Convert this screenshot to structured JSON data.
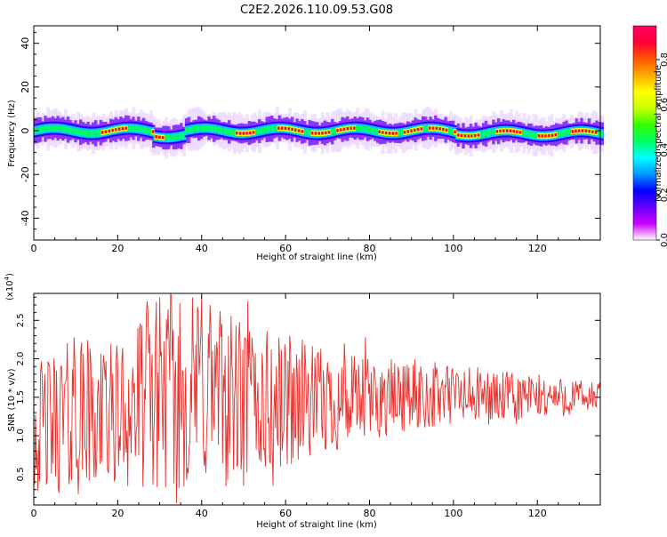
{
  "title": "C2E2.2026.110.09.53.G08",
  "chart_data": [
    {
      "type": "heatmap",
      "title": "C2E2.2026.110.09.53.G08",
      "xlabel": "Height of straight line (km)",
      "ylabel": "Frequency (Hz)",
      "xlim": [
        0,
        135
      ],
      "ylim": [
        -50,
        48
      ],
      "xticks": [
        0,
        20,
        40,
        60,
        80,
        100,
        120
      ],
      "yticks": [
        40,
        20,
        0,
        -20,
        -40
      ],
      "band_center_hz": 0,
      "band_halfwidth_hz": 3,
      "hot_segments_km": [
        [
          16,
          22
        ],
        [
          28,
          31
        ],
        [
          48,
          52
        ],
        [
          58,
          64
        ],
        [
          66,
          70
        ],
        [
          72,
          76
        ],
        [
          82,
          86
        ],
        [
          88,
          92
        ],
        [
          94,
          98
        ],
        [
          100,
          106
        ],
        [
          110,
          116
        ],
        [
          120,
          124
        ],
        [
          128,
          134
        ]
      ],
      "colorbar": {
        "label": "Normalized spectral amplitude",
        "range": [
          0.0,
          0.95
        ],
        "ticks": [
          "0.0",
          "0.2",
          "0.4",
          "0.6",
          "0.8"
        ],
        "tick_values": [
          0.0,
          0.2,
          0.4,
          0.6,
          0.8
        ],
        "colors": [
          "#ffffff",
          "#cc00ff",
          "#6600ff",
          "#0000ff",
          "#0099ff",
          "#00ffff",
          "#00ff66",
          "#33ff00",
          "#ccff00",
          "#ffff00",
          "#ffaa00",
          "#ff5500",
          "#ff0033",
          "#ff0066"
        ]
      }
    },
    {
      "type": "line",
      "xlabel": "Height of straight line (km)",
      "ylabel": "SNR (10 * v/v)",
      "yscale_note": "(x10",
      "yscale_exp": "4",
      "xlim": [
        0,
        135
      ],
      "ylim": [
        0.1,
        2.85
      ],
      "xticks": [
        0,
        20,
        40,
        60,
        80,
        100,
        120
      ],
      "yticks": [
        "0.5",
        "1.0",
        "1.5",
        "2.0",
        "2.5"
      ],
      "ytick_values": [
        0.5,
        1.0,
        1.5,
        2.0,
        2.5
      ],
      "series": [
        {
          "color": "#e8302c",
          "x_step_km": 0.2,
          "envelope": [
            [
              0,
              0.25,
              1.9
            ],
            [
              10,
              0.2,
              2.3
            ],
            [
              20,
              0.35,
              2.2
            ],
            [
              30,
              0.25,
              2.85
            ],
            [
              40,
              0.3,
              2.85
            ],
            [
              50,
              0.35,
              2.5
            ],
            [
              60,
              0.55,
              2.3
            ],
            [
              70,
              0.75,
              2.1
            ],
            [
              80,
              0.9,
              2.0
            ],
            [
              90,
              1.05,
              2.0
            ],
            [
              100,
              1.1,
              1.95
            ],
            [
              110,
              1.15,
              1.85
            ],
            [
              120,
              1.2,
              1.8
            ],
            [
              135,
              1.3,
              1.7
            ]
          ],
          "spikes": [
            [
              9.5,
              2.28
            ],
            [
              13,
              2.05
            ],
            [
              16,
              2.07
            ],
            [
              27,
              2.75
            ],
            [
              30,
              2.8
            ],
            [
              34,
              0.12
            ],
            [
              40,
              2.8
            ],
            [
              42,
              2.7
            ],
            [
              50,
              0.35
            ],
            [
              51,
              2.75
            ],
            [
              57,
              0.35
            ],
            [
              61,
              2.3
            ],
            [
              64,
              2.25
            ],
            [
              74,
              2.2
            ],
            [
              79,
              2.28
            ],
            [
              88,
              1.9
            ],
            [
              99,
              1.75
            ],
            [
              115,
              1.15
            ]
          ]
        }
      ]
    }
  ]
}
